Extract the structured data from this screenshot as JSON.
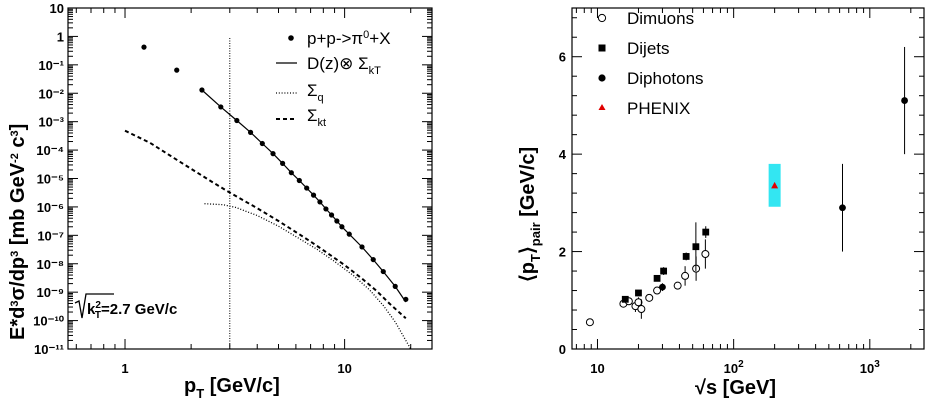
{
  "chart_data": [
    {
      "type": "scatter",
      "xscale": "log",
      "yscale": "log",
      "xlim": [
        0.55,
        25
      ],
      "ylim": [
        1e-11,
        10
      ],
      "grid": false,
      "legend_position": "top-right",
      "xlabel": "p_T [GeV/c]",
      "ylabel": "E*d³σ/dp³ [mb GeV⁻² c³]",
      "annotation": "√(k_T²)=2.7 GeV/c",
      "x_ticks": [
        {
          "v": 1,
          "label": "1"
        },
        {
          "v": 10,
          "label": "10"
        }
      ],
      "y_ticks": [
        {
          "v": 10,
          "label": "10"
        },
        {
          "v": 1,
          "label": "1"
        },
        {
          "v": 0.1,
          "label": "10⁻¹"
        },
        {
          "v": 0.01,
          "label": "10⁻²"
        },
        {
          "v": 0.001,
          "label": "10⁻³"
        },
        {
          "v": 0.0001,
          "label": "10⁻⁴"
        },
        {
          "v": 1e-05,
          "label": "10⁻⁵"
        },
        {
          "v": 1e-06,
          "label": "10⁻⁶"
        },
        {
          "v": 1e-07,
          "label": "10⁻⁷"
        },
        {
          "v": 1e-08,
          "label": "10⁻⁸"
        },
        {
          "v": 1e-09,
          "label": "10⁻⁹"
        },
        {
          "v": 1e-10,
          "label": "10⁻¹⁰"
        },
        {
          "v": 1e-11,
          "label": "10⁻¹¹"
        }
      ],
      "vline_x": 3.0,
      "series": [
        {
          "name": "p+p->π⁰+X",
          "style": "points",
          "points": [
            [
              1.22,
              0.42
            ],
            [
              1.72,
              0.065
            ],
            [
              2.24,
              0.013
            ],
            [
              2.73,
              0.0033
            ],
            [
              3.23,
              0.0011
            ],
            [
              3.73,
              0.00042
            ],
            [
              4.22,
              0.00017
            ],
            [
              4.72,
              7.5e-05
            ],
            [
              5.22,
              3.4e-05
            ],
            [
              5.72,
              1.6e-05
            ],
            [
              6.22,
              8.5e-06
            ],
            [
              6.72,
              4.6e-06
            ],
            [
              7.22,
              2.6e-06
            ],
            [
              7.72,
              1.5e-06
            ],
            [
              8.22,
              8.5e-07
            ],
            [
              8.72,
              5.2e-07
            ],
            [
              9.22,
              3.2e-07
            ],
            [
              9.72,
              2e-07
            ],
            [
              10.5,
              1.1e-07
            ],
            [
              12.0,
              3.9e-08
            ],
            [
              13.5,
              1.4e-08
            ],
            [
              15.0,
              5.3e-09
            ],
            [
              17.0,
              1.6e-09
            ],
            [
              19.0,
              5.6e-10
            ]
          ]
        },
        {
          "name": "D(z)⊗ Σ_kT",
          "style": "solid",
          "points": [
            [
              2.24,
              0.013
            ],
            [
              2.73,
              0.0033
            ],
            [
              3.23,
              0.0011
            ],
            [
              3.73,
              0.00042
            ],
            [
              4.22,
              0.00017
            ],
            [
              4.72,
              7.5e-05
            ],
            [
              5.22,
              3.4e-05
            ],
            [
              5.72,
              1.6e-05
            ],
            [
              6.22,
              8.5e-06
            ],
            [
              6.72,
              4.6e-06
            ],
            [
              7.22,
              2.6e-06
            ],
            [
              7.72,
              1.5e-06
            ],
            [
              8.22,
              8.5e-07
            ],
            [
              8.72,
              5.2e-07
            ],
            [
              9.22,
              3.2e-07
            ],
            [
              9.72,
              2e-07
            ],
            [
              10.5,
              1.1e-07
            ],
            [
              12.0,
              3.9e-08
            ],
            [
              13.5,
              1.4e-08
            ],
            [
              15.0,
              5.3e-09
            ],
            [
              17.0,
              1.6e-09
            ],
            [
              19.0,
              4.5e-10
            ]
          ]
        },
        {
          "name": "Σ_q",
          "style": "dotted",
          "points": [
            [
              2.3,
              1.3e-06
            ],
            [
              2.8,
              1.2e-06
            ],
            [
              3.2,
              9.5e-07
            ],
            [
              4.0,
              5e-07
            ],
            [
              5.0,
              2.1e-07
            ],
            [
              6.0,
              9e-08
            ],
            [
              7.5,
              3.2e-08
            ],
            [
              9.0,
              1.2e-08
            ],
            [
              11.0,
              3.8e-09
            ],
            [
              13.0,
              1.2e-09
            ],
            [
              15.0,
              3.4e-10
            ],
            [
              17.0,
              9e-11
            ],
            [
              19.0,
              2e-11
            ],
            [
              20.0,
              1e-11
            ]
          ]
        },
        {
          "name": "Σ_kt",
          "style": "dashed",
          "points": [
            [
              1.0,
              0.00048
            ],
            [
              1.3,
              0.00018
            ],
            [
              1.6,
              6.5e-05
            ],
            [
              2.0,
              2.2e-05
            ],
            [
              2.5,
              7.5e-06
            ],
            [
              3.0,
              3.2e-06
            ],
            [
              4.0,
              9e-07
            ],
            [
              5.0,
              3.2e-07
            ],
            [
              6.0,
              1.3e-07
            ],
            [
              7.0,
              6e-08
            ],
            [
              8.0,
              3e-08
            ],
            [
              10.0,
              9e-09
            ],
            [
              12.0,
              3e-09
            ],
            [
              14.0,
              1.1e-09
            ],
            [
              16.0,
              4e-10
            ],
            [
              19.0,
              1.2e-10
            ]
          ]
        }
      ]
    },
    {
      "type": "scatter",
      "xscale": "log",
      "yscale": "linear",
      "xlim": [
        6.5,
        2500
      ],
      "ylim": [
        0,
        7
      ],
      "grid": false,
      "legend_position": "top-left",
      "xlabel": "√s [GeV]",
      "ylabel": "⟨p_T⟩_pair [GeV/c]",
      "x_ticks": [
        {
          "v": 10,
          "label": "10"
        },
        {
          "v": 100,
          "label": "10²"
        },
        {
          "v": 1000,
          "label": "10³"
        }
      ],
      "y_ticks": [
        {
          "v": 0,
          "label": "0"
        },
        {
          "v": 2,
          "label": "2"
        },
        {
          "v": 4,
          "label": "4"
        },
        {
          "v": 6,
          "label": "6"
        }
      ],
      "series": [
        {
          "name": "Dimuons",
          "marker": "open-circle",
          "points": [
            {
              "x": 8.8,
              "y": 0.55,
              "err": 0.04
            },
            {
              "x": 15.5,
              "y": 0.93,
              "err": 0.05
            },
            {
              "x": 17.0,
              "y": 0.98,
              "err": 0.05
            },
            {
              "x": 19.0,
              "y": 0.88,
              "err": 0.12
            },
            {
              "x": 20.0,
              "y": 0.96,
              "err": 0.1
            },
            {
              "x": 21.0,
              "y": 0.82,
              "err": 0.2
            },
            {
              "x": 24.0,
              "y": 1.05,
              "err": 0.06
            },
            {
              "x": 27.4,
              "y": 1.2,
              "err": 0.06
            },
            {
              "x": 38.8,
              "y": 1.3,
              "err": 0.06
            },
            {
              "x": 44.0,
              "y": 1.5,
              "err": 0.2
            },
            {
              "x": 53.0,
              "y": 1.65,
              "err": 0.25
            },
            {
              "x": 62.0,
              "y": 1.95,
              "err": 0.3
            }
          ]
        },
        {
          "name": "Dijets",
          "marker": "filled-square",
          "points": [
            {
              "x": 16.0,
              "y": 1.02,
              "err": 0.05
            },
            {
              "x": 20.0,
              "y": 1.15,
              "err": 0.06
            },
            {
              "x": 27.4,
              "y": 1.45,
              "err": 0.06
            },
            {
              "x": 30.6,
              "y": 1.6,
              "err": 0.08
            },
            {
              "x": 44.8,
              "y": 1.9,
              "err": 0.08
            },
            {
              "x": 52.8,
              "y": 2.1,
              "err": 0.5
            },
            {
              "x": 62.4,
              "y": 2.4,
              "err": 0.12
            }
          ]
        },
        {
          "name": "Diphotons",
          "marker": "filled-circle",
          "points": [
            {
              "x": 30.0,
              "y": 1.27,
              "err": 0.08
            },
            {
              "x": 630.0,
              "y": 2.9,
              "err": 0.9
            },
            {
              "x": 1800.0,
              "y": 5.1,
              "err": 1.1
            }
          ]
        },
        {
          "name": "PHENIX",
          "marker": "red-triangle",
          "color": "#e00000",
          "band_color": "#33e6f2",
          "points": [
            {
              "x": 200.0,
              "y": 3.36,
              "err": 0.44
            }
          ]
        }
      ]
    }
  ]
}
